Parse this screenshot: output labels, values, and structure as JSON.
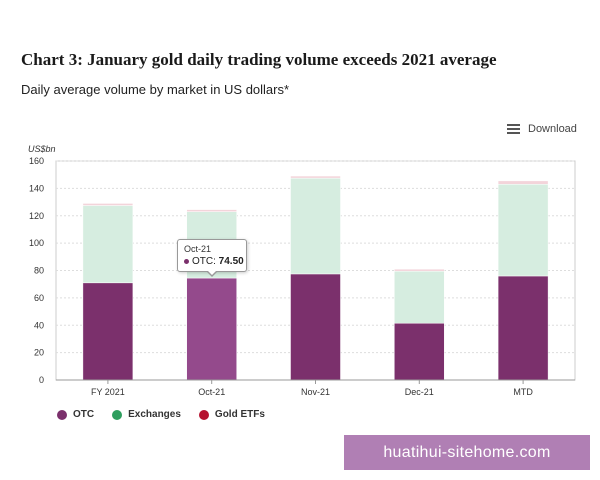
{
  "header": {
    "title": "Chart 3: January gold daily trading volume exceeds 2021 average",
    "subtitle": "Daily average volume by market in US dollars*"
  },
  "toolbar": {
    "download_label": "Download",
    "download_icon": "hamburger-menu-icon"
  },
  "chart_data": {
    "type": "bar",
    "stacked": true,
    "categories": [
      "FY 2021",
      "Oct-21",
      "Nov-21",
      "Dec-21",
      "MTD"
    ],
    "series": [
      {
        "name": "OTC",
        "color": "#7b306c",
        "values": [
          71,
          74.5,
          77.5,
          41.5,
          76
        ]
      },
      {
        "name": "Exchanges",
        "color": "#d6ede0",
        "values": [
          56.5,
          48.5,
          70,
          38,
          67
        ]
      },
      {
        "name": "Gold ETFs",
        "color": "#f3d4da",
        "values": [
          1.5,
          1.5,
          1.5,
          1.5,
          2.5
        ]
      }
    ],
    "ylabel": "US$bn",
    "ylim": [
      0,
      160
    ],
    "yticks": [
      0,
      20,
      40,
      60,
      80,
      100,
      120,
      140,
      160
    ],
    "grid": true,
    "legend_position": "bottom-left"
  },
  "legend": {
    "items": [
      {
        "label": "OTC",
        "color": "#7b306c"
      },
      {
        "label": "Exchanges",
        "color": "#2e9e5e"
      },
      {
        "label": "Gold ETFs",
        "color": "#b5122f"
      }
    ]
  },
  "tooltip": {
    "category": "Oct-21",
    "series": "OTC:",
    "value": "74.50"
  },
  "watermark": {
    "text": "huatihui-sitehome.com"
  }
}
